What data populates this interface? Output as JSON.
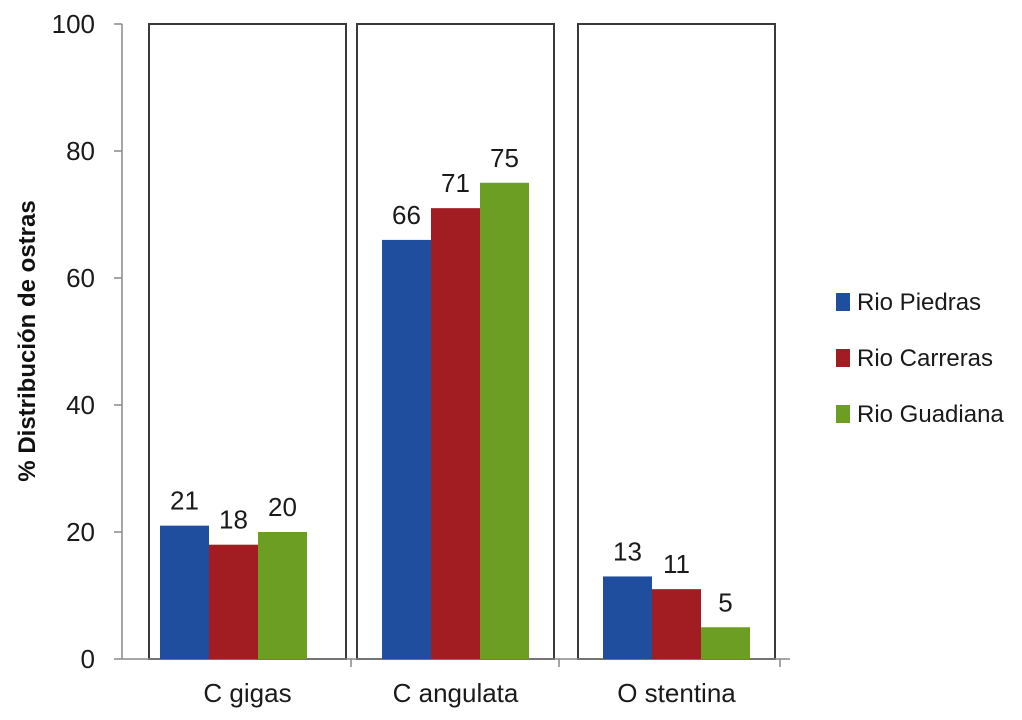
{
  "chart_data": {
    "type": "bar",
    "categories": [
      "C gigas",
      "C angulata",
      "O stentina"
    ],
    "series": [
      {
        "name": "Rio Piedras",
        "color": "#1f4e9e",
        "values": [
          21,
          66,
          13
        ]
      },
      {
        "name": "Rio Carreras",
        "color": "#a21d21",
        "values": [
          18,
          71,
          11
        ]
      },
      {
        "name": "Rio Guadiana",
        "color": "#6c9e24",
        "values": [
          20,
          75,
          5
        ]
      }
    ],
    "ylabel": "% Distribución de ostras",
    "xlabel": "",
    "ylim": [
      0,
      100
    ],
    "yticks": [
      0,
      20,
      40,
      60,
      80,
      100
    ],
    "legend_position": "right",
    "grid": false,
    "category_panels": true
  }
}
